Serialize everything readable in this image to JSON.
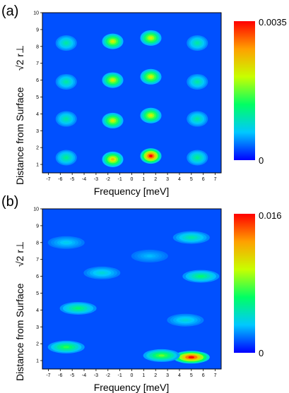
{
  "panels": [
    {
      "label": "(a)",
      "xlabel": "Frequency [meV]",
      "ylabel": "Distance from Surface",
      "ylabel_math": "√2 r⊥",
      "colorbar_max": "0.0035",
      "colorbar_min": "0"
    },
    {
      "label": "(b)",
      "xlabel": "Frequency [meV]",
      "ylabel": "Distance from Surface",
      "ylabel_math": "√2 r⊥",
      "colorbar_max": "0.016",
      "colorbar_min": "0"
    }
  ],
  "colorscale": [
    "#0000ff",
    "#00c8ff",
    "#00ff64",
    "#c8ff00",
    "#ffa000",
    "#ff0000"
  ],
  "chart_data": [
    {
      "type": "heatmap",
      "xlabel": "Frequency [meV]",
      "ylabel": "Distance from Surface √2 r⊥",
      "xlim": [
        -7.5,
        7.5
      ],
      "ylim": [
        0.5,
        10
      ],
      "xticks": [
        -7,
        -6,
        -5,
        -4,
        -3,
        -2,
        -1,
        0,
        1,
        2,
        3,
        4,
        5,
        6,
        7
      ],
      "yticks": [
        1,
        2,
        3,
        4,
        5,
        6,
        7,
        8,
        9,
        10
      ],
      "value_range": [
        0,
        0.0035
      ],
      "peaks": [
        {
          "x": -5.5,
          "y": 1.4,
          "value": 0.0012
        },
        {
          "x": -1.6,
          "y": 1.3,
          "value": 0.0025
        },
        {
          "x": 1.6,
          "y": 1.5,
          "value": 0.0035
        },
        {
          "x": 5.5,
          "y": 1.4,
          "value": 0.0012
        },
        {
          "x": -5.5,
          "y": 3.7,
          "value": 0.0011
        },
        {
          "x": -1.6,
          "y": 3.6,
          "value": 0.0022
        },
        {
          "x": 1.6,
          "y": 3.9,
          "value": 0.0022
        },
        {
          "x": 5.5,
          "y": 3.7,
          "value": 0.0011
        },
        {
          "x": -5.5,
          "y": 5.9,
          "value": 0.0011
        },
        {
          "x": -1.6,
          "y": 6.0,
          "value": 0.0022
        },
        {
          "x": 1.6,
          "y": 6.2,
          "value": 0.0022
        },
        {
          "x": 5.5,
          "y": 5.9,
          "value": 0.0011
        },
        {
          "x": -5.5,
          "y": 8.2,
          "value": 0.0011
        },
        {
          "x": -1.6,
          "y": 8.3,
          "value": 0.0022
        },
        {
          "x": 1.6,
          "y": 8.5,
          "value": 0.0022
        },
        {
          "x": 5.5,
          "y": 8.2,
          "value": 0.0011
        }
      ]
    },
    {
      "type": "heatmap",
      "xlabel": "Frequency [meV]",
      "ylabel": "Distance from Surface √2 r⊥",
      "xlim": [
        -7.5,
        7.5
      ],
      "ylim": [
        0.5,
        10
      ],
      "xticks": [
        -7,
        -6,
        -5,
        -4,
        -3,
        -2,
        -1,
        0,
        1,
        2,
        3,
        4,
        5,
        6,
        7
      ],
      "yticks": [
        1,
        2,
        3,
        4,
        5,
        6,
        7,
        8,
        9,
        10
      ],
      "value_range": [
        0,
        0.016
      ],
      "peaks": [
        {
          "x": 5.0,
          "y": 1.2,
          "value": 0.016
        },
        {
          "x": 2.5,
          "y": 1.3,
          "value": 0.008
        },
        {
          "x": -5.5,
          "y": 1.8,
          "value": 0.007
        },
        {
          "x": -4.5,
          "y": 4.1,
          "value": 0.006
        },
        {
          "x": 5.8,
          "y": 6.0,
          "value": 0.006
        },
        {
          "x": 5.0,
          "y": 8.3,
          "value": 0.005
        },
        {
          "x": 4.5,
          "y": 3.4,
          "value": 0.004
        },
        {
          "x": -2.5,
          "y": 6.2,
          "value": 0.004
        },
        {
          "x": -5.5,
          "y": 8.0,
          "value": 0.0035
        },
        {
          "x": 1.5,
          "y": 7.2,
          "value": 0.003
        }
      ]
    }
  ]
}
